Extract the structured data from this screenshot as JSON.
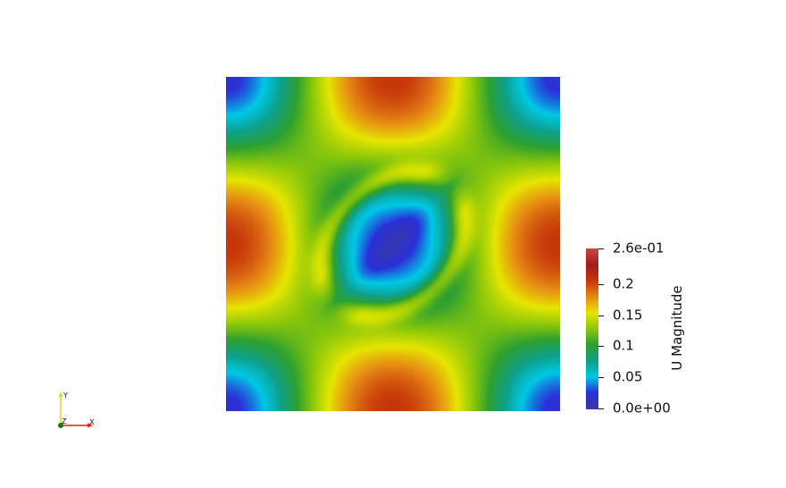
{
  "scalar_bar": {
    "title": "U Magnitude",
    "range": [
      0.0,
      0.26
    ],
    "ticks": [
      {
        "value": 0.26,
        "label": "2.6e-01"
      },
      {
        "value": 0.2,
        "label": "0.2"
      },
      {
        "value": 0.15,
        "label": "0.15"
      },
      {
        "value": 0.1,
        "label": "0.1"
      },
      {
        "value": 0.05,
        "label": "0.05"
      },
      {
        "value": 0.0,
        "label": "0.0e+00"
      }
    ],
    "colormap": [
      "#3b3aa3",
      "#2a2fd9",
      "#00c8e6",
      "#0fa08a",
      "#2ca030",
      "#8cc80a",
      "#e6e600",
      "#e68a14",
      "#c8380a",
      "#a01e1e",
      "#c84646"
    ]
  },
  "orientation_axes": {
    "x_label": "X",
    "y_label": "Y",
    "z_label": "Z",
    "x_color": "#e0201a",
    "y_color": "#e6d21a",
    "z_color": "#1a7a1a"
  }
}
